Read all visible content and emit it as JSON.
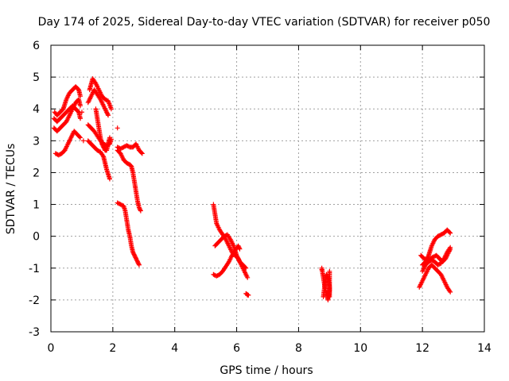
{
  "chart_data": {
    "type": "scatter",
    "title": "Day 174 of 2025, Sidereal Day-to-day VTEC variation (SDTVAR) for receiver p050",
    "xlabel": "GPS time / hours",
    "ylabel": "SDTVAR / TECUs",
    "xlim": [
      0,
      14
    ],
    "ylim": [
      -3,
      6
    ],
    "x_ticks": [
      0,
      2,
      4,
      6,
      8,
      10,
      12,
      14
    ],
    "y_ticks": [
      -3,
      -2,
      -1,
      0,
      1,
      2,
      3,
      4,
      5,
      6
    ],
    "x_tick_labels": [
      "0",
      "2",
      "4",
      "6",
      "8",
      "10",
      "12",
      "14"
    ],
    "y_tick_labels": [
      "-3",
      "-2",
      "-1",
      "0",
      "1",
      "2",
      "3",
      "4",
      "5",
      "6"
    ],
    "grid": true,
    "marker": "plus",
    "color": "#ff0000",
    "series": [
      {
        "name": "SDTVAR",
        "tracks": [
          [
            [
              0.12,
              3.9
            ],
            [
              0.2,
              3.8
            ],
            [
              0.3,
              3.9
            ],
            [
              0.4,
              4.0
            ],
            [
              0.5,
              4.3
            ],
            [
              0.6,
              4.5
            ],
            [
              0.7,
              4.6
            ],
            [
              0.8,
              4.7
            ],
            [
              0.9,
              4.6
            ],
            [
              0.95,
              4.4
            ]
          ],
          [
            [
              0.1,
              3.7
            ],
            [
              0.2,
              3.6
            ],
            [
              0.3,
              3.7
            ],
            [
              0.4,
              3.8
            ],
            [
              0.5,
              3.9
            ],
            [
              0.6,
              4.0
            ],
            [
              0.7,
              4.1
            ],
            [
              0.8,
              4.0
            ],
            [
              0.9,
              3.9
            ],
            [
              0.95,
              3.7
            ]
          ],
          [
            [
              0.1,
              3.4
            ],
            [
              0.2,
              3.3
            ],
            [
              0.3,
              3.4
            ],
            [
              0.4,
              3.5
            ],
            [
              0.5,
              3.6
            ],
            [
              0.6,
              3.8
            ],
            [
              0.7,
              4.0
            ],
            [
              0.8,
              4.2
            ],
            [
              0.9,
              4.3
            ],
            [
              0.95,
              4.1
            ]
          ],
          [
            [
              0.15,
              2.6
            ],
            [
              0.25,
              2.55
            ],
            [
              0.35,
              2.6
            ],
            [
              0.45,
              2.7
            ],
            [
              0.55,
              2.9
            ],
            [
              0.65,
              3.1
            ],
            [
              0.75,
              3.3
            ],
            [
              0.85,
              3.2
            ],
            [
              0.95,
              3.1
            ]
          ],
          [
            [
              1.25,
              4.6
            ],
            [
              1.35,
              4.95
            ],
            [
              1.45,
              4.8
            ],
            [
              1.55,
              4.6
            ],
            [
              1.65,
              4.4
            ],
            [
              1.75,
              4.3
            ],
            [
              1.85,
              4.25
            ],
            [
              1.95,
              4.0
            ]
          ],
          [
            [
              1.2,
              4.2
            ],
            [
              1.3,
              4.4
            ],
            [
              1.4,
              4.6
            ],
            [
              1.5,
              4.45
            ],
            [
              1.6,
              4.3
            ],
            [
              1.7,
              4.1
            ],
            [
              1.8,
              3.9
            ],
            [
              1.85,
              3.8
            ]
          ],
          [
            [
              1.2,
              3.5
            ],
            [
              1.3,
              3.4
            ],
            [
              1.4,
              3.3
            ],
            [
              1.5,
              3.15
            ],
            [
              1.6,
              3.0
            ],
            [
              1.7,
              2.9
            ],
            [
              1.8,
              2.85
            ],
            [
              1.9,
              2.9
            ],
            [
              1.95,
              3.05
            ]
          ],
          [
            [
              1.45,
              4.0
            ],
            [
              1.5,
              3.7
            ],
            [
              1.55,
              3.4
            ],
            [
              1.6,
              3.1
            ],
            [
              1.65,
              2.9
            ],
            [
              1.7,
              2.8
            ],
            [
              1.75,
              2.7
            ],
            [
              1.8,
              2.7
            ],
            [
              1.85,
              2.9
            ],
            [
              1.9,
              3.1
            ]
          ],
          [
            [
              1.2,
              3.0
            ],
            [
              1.3,
              2.9
            ],
            [
              1.4,
              2.8
            ],
            [
              1.5,
              2.7
            ],
            [
              1.6,
              2.65
            ],
            [
              1.7,
              2.5
            ],
            [
              1.75,
              2.3
            ],
            [
              1.8,
              2.1
            ],
            [
              1.85,
              1.95
            ],
            [
              1.9,
              1.8
            ]
          ],
          [
            [
              2.15,
              2.8
            ],
            [
              2.25,
              2.75
            ],
            [
              2.35,
              2.8
            ],
            [
              2.45,
              2.85
            ],
            [
              2.55,
              2.8
            ],
            [
              2.65,
              2.8
            ],
            [
              2.75,
              2.9
            ],
            [
              2.85,
              2.7
            ],
            [
              2.95,
              2.6
            ]
          ],
          [
            [
              2.15,
              2.7
            ],
            [
              2.25,
              2.6
            ],
            [
              2.35,
              2.4
            ],
            [
              2.45,
              2.3
            ],
            [
              2.55,
              2.25
            ],
            [
              2.6,
              2.2
            ],
            [
              2.65,
              2.0
            ],
            [
              2.7,
              1.7
            ],
            [
              2.75,
              1.4
            ],
            [
              2.8,
              1.1
            ],
            [
              2.85,
              0.9
            ],
            [
              2.9,
              0.8
            ]
          ],
          [
            [
              2.15,
              1.05
            ],
            [
              2.25,
              1.0
            ],
            [
              2.35,
              0.95
            ],
            [
              2.4,
              0.8
            ],
            [
              2.45,
              0.5
            ],
            [
              2.5,
              0.2
            ],
            [
              2.55,
              0.0
            ],
            [
              2.6,
              -0.3
            ],
            [
              2.65,
              -0.5
            ],
            [
              2.7,
              -0.6
            ],
            [
              2.75,
              -0.7
            ],
            [
              2.8,
              -0.8
            ],
            [
              2.85,
              -0.9
            ]
          ],
          [
            [
              5.25,
              1.0
            ],
            [
              5.3,
              0.7
            ],
            [
              5.35,
              0.4
            ],
            [
              5.45,
              0.2
            ],
            [
              5.55,
              0.05
            ],
            [
              5.65,
              -0.1
            ],
            [
              5.75,
              -0.3
            ],
            [
              5.85,
              -0.5
            ],
            [
              5.95,
              -0.6
            ],
            [
              6.05,
              -0.7
            ],
            [
              6.15,
              -0.9
            ],
            [
              6.25,
              -1.1
            ],
            [
              6.35,
              -1.3
            ]
          ],
          [
            [
              5.3,
              -0.3
            ],
            [
              5.4,
              -0.2
            ],
            [
              5.5,
              -0.1
            ],
            [
              5.6,
              0.0
            ],
            [
              5.7,
              0.05
            ],
            [
              5.8,
              -0.1
            ],
            [
              5.9,
              -0.3
            ],
            [
              6.0,
              -0.6
            ],
            [
              6.1,
              -0.8
            ],
            [
              6.2,
              -0.9
            ],
            [
              6.3,
              -1.0
            ]
          ],
          [
            [
              5.25,
              -1.2
            ],
            [
              5.35,
              -1.25
            ],
            [
              5.45,
              -1.2
            ],
            [
              5.55,
              -1.1
            ],
            [
              5.65,
              -0.95
            ],
            [
              5.75,
              -0.8
            ],
            [
              5.85,
              -0.6
            ],
            [
              5.95,
              -0.45
            ],
            [
              6.05,
              -0.3
            ],
            [
              6.1,
              -0.4
            ]
          ],
          [
            [
              6.3,
              -1.8
            ],
            [
              6.38,
              -1.85
            ]
          ],
          [
            [
              8.75,
              -1.0
            ],
            [
              8.8,
              -1.3
            ],
            [
              8.85,
              -1.6
            ],
            [
              8.9,
              -1.8
            ],
            [
              8.95,
              -2.0
            ],
            [
              9.0,
              -1.7
            ],
            [
              9.0,
              -1.4
            ],
            [
              9.0,
              -1.1
            ]
          ],
          [
            [
              8.8,
              -1.9
            ],
            [
              8.85,
              -1.5
            ],
            [
              8.9,
              -1.2
            ],
            [
              8.95,
              -1.3
            ],
            [
              9.0,
              -1.6
            ],
            [
              9.0,
              -1.9
            ]
          ],
          [
            [
              11.9,
              -1.6
            ],
            [
              12.0,
              -1.4
            ],
            [
              12.1,
              -1.2
            ],
            [
              12.2,
              -1.0
            ],
            [
              12.3,
              -0.9
            ],
            [
              12.4,
              -1.0
            ],
            [
              12.5,
              -1.1
            ],
            [
              12.6,
              -1.2
            ],
            [
              12.7,
              -1.4
            ],
            [
              12.8,
              -1.6
            ],
            [
              12.9,
              -1.75
            ]
          ],
          [
            [
              11.95,
              -0.6
            ],
            [
              12.05,
              -0.7
            ],
            [
              12.15,
              -0.75
            ],
            [
              12.25,
              -0.7
            ],
            [
              12.35,
              -0.65
            ],
            [
              12.45,
              -0.6
            ],
            [
              12.55,
              -0.7
            ],
            [
              12.65,
              -0.8
            ],
            [
              12.75,
              -0.7
            ],
            [
              12.85,
              -0.5
            ],
            [
              12.9,
              -0.4
            ]
          ],
          [
            [
              12.0,
              -0.9
            ],
            [
              12.1,
              -0.8
            ],
            [
              12.2,
              -0.6
            ],
            [
              12.3,
              -0.3
            ],
            [
              12.4,
              -0.1
            ],
            [
              12.5,
              0.0
            ],
            [
              12.6,
              0.05
            ],
            [
              12.7,
              0.1
            ],
            [
              12.8,
              0.2
            ],
            [
              12.9,
              0.1
            ]
          ],
          [
            [
              12.0,
              -1.1
            ],
            [
              12.1,
              -0.9
            ],
            [
              12.2,
              -0.8
            ],
            [
              12.3,
              -0.75
            ],
            [
              12.4,
              -0.8
            ],
            [
              12.5,
              -0.9
            ],
            [
              12.6,
              -0.85
            ],
            [
              12.7,
              -0.7
            ],
            [
              12.8,
              -0.5
            ],
            [
              12.9,
              -0.35
            ]
          ]
        ],
        "points": [
          [
            2.15,
            3.4
          ],
          [
            1.0,
            3.9
          ],
          [
            1.05,
            3.0
          ],
          [
            6.35,
            -1.85
          ],
          [
            8.75,
            -1.05
          ]
        ]
      }
    ]
  }
}
